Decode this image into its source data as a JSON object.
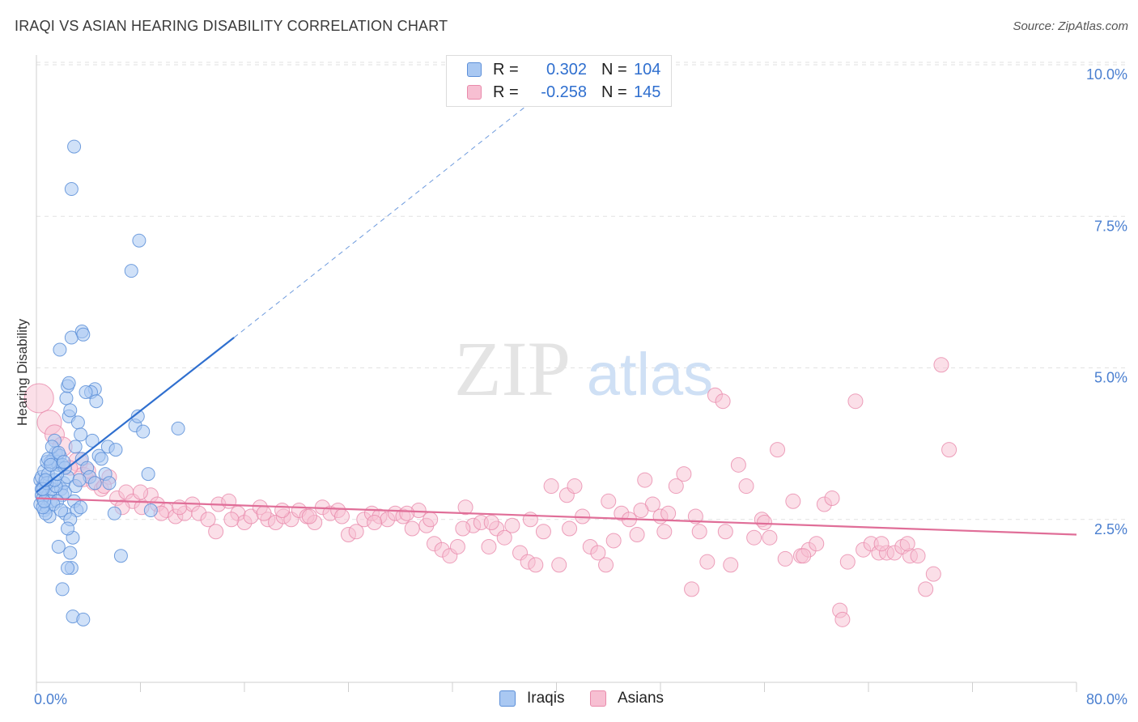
{
  "header": {
    "title": "IRAQI VS ASIAN HEARING DISABILITY CORRELATION CHART",
    "source": "Source: ZipAtlas.com"
  },
  "watermark": {
    "zip": "ZIP",
    "atlas": "atlas"
  },
  "legend_top": [
    {
      "r_label": "R =",
      "r_value": "0.302",
      "n_label": "N =",
      "n_value": "104"
    },
    {
      "r_label": "R =",
      "r_value": "-0.258",
      "n_label": "N =",
      "n_value": "145"
    }
  ],
  "legend_bottom": [
    "Iraqis",
    "Asians"
  ],
  "colors": {
    "iraqis_fill": "#a9c8f2",
    "iraqis_stroke": "#5c8fd8",
    "iraqis_line": "#2f6fcf",
    "asians_fill": "#f7bfd2",
    "asians_stroke": "#e98aab",
    "asians_line": "#e06e98",
    "tick_label": "#4a7fd0",
    "grid": "#e2e2e2"
  },
  "chart_data": {
    "type": "scatter",
    "title": "IRAQI VS ASIAN HEARING DISABILITY CORRELATION CHART",
    "xlabel": "",
    "ylabel": "Hearing Disability",
    "xlim": [
      0,
      80
    ],
    "ylim": [
      0,
      10
    ],
    "x_tick_labels": [
      "0.0%",
      "80.0%"
    ],
    "y_ticks": [
      2.5,
      5.0,
      7.5,
      10.0
    ],
    "y_tick_labels": [
      "2.5%",
      "5.0%",
      "7.5%",
      "10.0%"
    ],
    "grid": "horizontal dashed",
    "legend": "top-center and bottom",
    "series": [
      {
        "name": "Iraqis",
        "r": 0.302,
        "n": 104,
        "trend": {
          "x": [
            0,
            15.2
          ],
          "y": [
            2.95,
            5.5
          ],
          "dashed_extension_to": [
            40.5,
            9.8
          ]
        },
        "points": [
          [
            0.3,
            2.75
          ],
          [
            0.4,
            2.9
          ],
          [
            0.5,
            3.05
          ],
          [
            0.3,
            3.15
          ],
          [
            0.6,
            2.65
          ],
          [
            0.5,
            2.85
          ],
          [
            0.7,
            3.0
          ],
          [
            0.8,
            2.7
          ],
          [
            0.4,
            3.2
          ],
          [
            0.9,
            2.9
          ],
          [
            1.0,
            3.1
          ],
          [
            1.1,
            2.8
          ],
          [
            0.6,
            3.3
          ],
          [
            1.2,
            3.0
          ],
          [
            0.8,
            3.45
          ],
          [
            1.3,
            3.5
          ],
          [
            1.5,
            3.6
          ],
          [
            1.4,
            3.8
          ],
          [
            1.6,
            3.45
          ],
          [
            1.7,
            3.4
          ],
          [
            1.8,
            3.55
          ],
          [
            1.2,
            3.7
          ],
          [
            1.9,
            3.0
          ],
          [
            2.0,
            2.9
          ],
          [
            2.1,
            3.1
          ],
          [
            2.2,
            2.6
          ],
          [
            2.4,
            3.2
          ],
          [
            2.5,
            4.2
          ],
          [
            2.3,
            4.5
          ],
          [
            2.6,
            4.3
          ],
          [
            2.4,
            4.7
          ],
          [
            2.5,
            4.75
          ],
          [
            1.8,
            5.3
          ],
          [
            2.7,
            5.5
          ],
          [
            2.7,
            7.95
          ],
          [
            2.9,
            8.65
          ],
          [
            3.5,
            5.6
          ],
          [
            3.6,
            5.55
          ],
          [
            4.5,
            4.65
          ],
          [
            4.2,
            4.6
          ],
          [
            3.8,
            4.6
          ],
          [
            3.2,
            4.1
          ],
          [
            3.4,
            3.9
          ],
          [
            3.0,
            3.7
          ],
          [
            3.5,
            3.5
          ],
          [
            3.9,
            3.35
          ],
          [
            4.1,
            3.2
          ],
          [
            4.5,
            3.1
          ],
          [
            4.8,
            3.55
          ],
          [
            5.0,
            3.5
          ],
          [
            5.5,
            3.7
          ],
          [
            5.3,
            3.25
          ],
          [
            5.6,
            3.1
          ],
          [
            6.1,
            3.65
          ],
          [
            6.0,
            2.6
          ],
          [
            2.9,
            2.8
          ],
          [
            3.1,
            2.65
          ],
          [
            3.4,
            2.7
          ],
          [
            2.6,
            2.5
          ],
          [
            2.8,
            2.2
          ],
          [
            2.4,
            2.35
          ],
          [
            1.7,
            2.05
          ],
          [
            2.6,
            1.95
          ],
          [
            2.7,
            1.7
          ],
          [
            2.4,
            1.7
          ],
          [
            2.0,
            1.35
          ],
          [
            2.8,
            0.9
          ],
          [
            3.6,
            0.85
          ],
          [
            6.5,
            1.9
          ],
          [
            7.6,
            4.05
          ],
          [
            7.8,
            4.2
          ],
          [
            8.2,
            3.95
          ],
          [
            8.6,
            3.25
          ],
          [
            8.8,
            2.65
          ],
          [
            7.3,
            6.6
          ],
          [
            7.9,
            7.1
          ],
          [
            10.9,
            4.0
          ],
          [
            2.2,
            2.95
          ],
          [
            1.5,
            3.05
          ],
          [
            1.6,
            2.8
          ],
          [
            1.1,
            3.45
          ],
          [
            0.9,
            3.25
          ],
          [
            2.0,
            3.4
          ],
          [
            1.3,
            2.75
          ],
          [
            1.0,
            2.55
          ],
          [
            0.7,
            2.6
          ],
          [
            1.9,
            2.65
          ],
          [
            2.2,
            3.35
          ],
          [
            3.0,
            3.05
          ],
          [
            3.3,
            3.15
          ],
          [
            4.6,
            4.45
          ],
          [
            4.3,
            3.8
          ],
          [
            0.5,
            2.7
          ],
          [
            0.6,
            2.8
          ],
          [
            0.4,
            3.0
          ],
          [
            0.8,
            3.1
          ],
          [
            1.4,
            3.15
          ],
          [
            1.6,
            3.25
          ],
          [
            0.9,
            3.5
          ],
          [
            1.7,
            3.6
          ],
          [
            1.1,
            3.4
          ],
          [
            2.1,
            3.45
          ],
          [
            0.5,
            3.0
          ],
          [
            0.7,
            3.15
          ]
        ]
      },
      {
        "name": "Asians",
        "r": -0.258,
        "n": 145,
        "trend": {
          "x": [
            0,
            80
          ],
          "y": [
            2.85,
            2.25
          ]
        },
        "points": [
          [
            0.2,
            4.5
          ],
          [
            1.0,
            4.1
          ],
          [
            1.4,
            3.9
          ],
          [
            2.0,
            3.7
          ],
          [
            3.2,
            3.45
          ],
          [
            3.6,
            3.2
          ],
          [
            4.4,
            3.1
          ],
          [
            5.0,
            3.0
          ],
          [
            5.6,
            3.2
          ],
          [
            6.2,
            2.85
          ],
          [
            6.9,
            2.95
          ],
          [
            7.4,
            2.8
          ],
          [
            8.1,
            2.7
          ],
          [
            8.8,
            2.9
          ],
          [
            9.3,
            2.75
          ],
          [
            10.0,
            2.65
          ],
          [
            10.7,
            2.55
          ],
          [
            11.4,
            2.6
          ],
          [
            12.0,
            2.75
          ],
          [
            12.5,
            2.6
          ],
          [
            13.2,
            2.5
          ],
          [
            14.0,
            2.75
          ],
          [
            14.8,
            2.8
          ],
          [
            15.5,
            2.6
          ],
          [
            16.0,
            2.45
          ],
          [
            16.5,
            2.55
          ],
          [
            17.2,
            2.7
          ],
          [
            17.8,
            2.5
          ],
          [
            18.4,
            2.45
          ],
          [
            19.0,
            2.55
          ],
          [
            19.6,
            2.5
          ],
          [
            20.2,
            2.65
          ],
          [
            20.8,
            2.55
          ],
          [
            21.4,
            2.45
          ],
          [
            22.0,
            2.7
          ],
          [
            22.6,
            2.6
          ],
          [
            23.2,
            2.65
          ],
          [
            24.0,
            2.25
          ],
          [
            24.6,
            2.3
          ],
          [
            25.2,
            2.5
          ],
          [
            25.8,
            2.6
          ],
          [
            26.4,
            2.55
          ],
          [
            27.0,
            2.5
          ],
          [
            27.6,
            2.6
          ],
          [
            28.2,
            2.55
          ],
          [
            28.9,
            2.35
          ],
          [
            29.4,
            2.65
          ],
          [
            30.0,
            2.4
          ],
          [
            30.6,
            2.1
          ],
          [
            31.2,
            2.0
          ],
          [
            31.8,
            1.9
          ],
          [
            32.4,
            2.05
          ],
          [
            33.0,
            2.7
          ],
          [
            33.6,
            2.4
          ],
          [
            34.2,
            2.45
          ],
          [
            34.8,
            2.05
          ],
          [
            35.4,
            2.35
          ],
          [
            36.0,
            2.2
          ],
          [
            36.6,
            2.4
          ],
          [
            37.2,
            1.95
          ],
          [
            37.8,
            1.8
          ],
          [
            38.4,
            1.75
          ],
          [
            39.0,
            2.3
          ],
          [
            39.6,
            3.05
          ],
          [
            40.2,
            1.75
          ],
          [
            40.8,
            2.9
          ],
          [
            41.4,
            3.05
          ],
          [
            42.0,
            2.55
          ],
          [
            42.6,
            2.05
          ],
          [
            43.2,
            1.95
          ],
          [
            43.8,
            1.75
          ],
          [
            44.4,
            2.15
          ],
          [
            45.0,
            2.6
          ],
          [
            45.6,
            2.5
          ],
          [
            46.2,
            2.25
          ],
          [
            46.8,
            3.15
          ],
          [
            47.4,
            2.75
          ],
          [
            48.0,
            2.55
          ],
          [
            48.6,
            2.6
          ],
          [
            49.2,
            3.05
          ],
          [
            49.8,
            3.25
          ],
          [
            50.4,
            1.35
          ],
          [
            51.0,
            2.3
          ],
          [
            51.6,
            1.8
          ],
          [
            52.2,
            4.55
          ],
          [
            52.8,
            4.45
          ],
          [
            53.4,
            1.75
          ],
          [
            54.0,
            3.4
          ],
          [
            54.6,
            3.05
          ],
          [
            55.2,
            2.2
          ],
          [
            55.8,
            2.5
          ],
          [
            56.4,
            2.2
          ],
          [
            57.0,
            3.65
          ],
          [
            57.6,
            1.85
          ],
          [
            58.2,
            2.8
          ],
          [
            58.8,
            1.9
          ],
          [
            59.4,
            2.0
          ],
          [
            60.0,
            2.1
          ],
          [
            60.6,
            2.75
          ],
          [
            61.2,
            2.85
          ],
          [
            61.8,
            1.0
          ],
          [
            62.4,
            1.8
          ],
          [
            63.0,
            4.45
          ],
          [
            63.6,
            2.0
          ],
          [
            64.2,
            2.1
          ],
          [
            64.8,
            1.95
          ],
          [
            65.4,
            1.95
          ],
          [
            66.0,
            1.95
          ],
          [
            66.6,
            2.05
          ],
          [
            67.2,
            1.9
          ],
          [
            67.8,
            1.9
          ],
          [
            68.4,
            1.35
          ],
          [
            69.0,
            1.6
          ],
          [
            69.6,
            5.05
          ],
          [
            70.2,
            3.65
          ],
          [
            5.2,
            3.05
          ],
          [
            8.0,
            2.95
          ],
          [
            9.6,
            2.6
          ],
          [
            11.0,
            2.7
          ],
          [
            13.8,
            2.3
          ],
          [
            15.0,
            2.5
          ],
          [
            17.5,
            2.6
          ],
          [
            18.9,
            2.65
          ],
          [
            21.0,
            2.55
          ],
          [
            23.5,
            2.55
          ],
          [
            26.0,
            2.45
          ],
          [
            28.5,
            2.6
          ],
          [
            30.3,
            2.5
          ],
          [
            32.8,
            2.35
          ],
          [
            35.0,
            2.45
          ],
          [
            38.0,
            2.5
          ],
          [
            41.0,
            2.35
          ],
          [
            44.0,
            2.8
          ],
          [
            46.5,
            2.65
          ],
          [
            48.3,
            2.3
          ],
          [
            50.7,
            2.55
          ],
          [
            53.0,
            2.3
          ],
          [
            56.0,
            2.45
          ],
          [
            59.0,
            1.9
          ],
          [
            62.0,
            0.85
          ],
          [
            65.0,
            2.1
          ],
          [
            67.0,
            2.1
          ],
          [
            2.6,
            3.35
          ],
          [
            4.0,
            3.3
          ],
          [
            6.6,
            2.7
          ]
        ]
      }
    ]
  }
}
